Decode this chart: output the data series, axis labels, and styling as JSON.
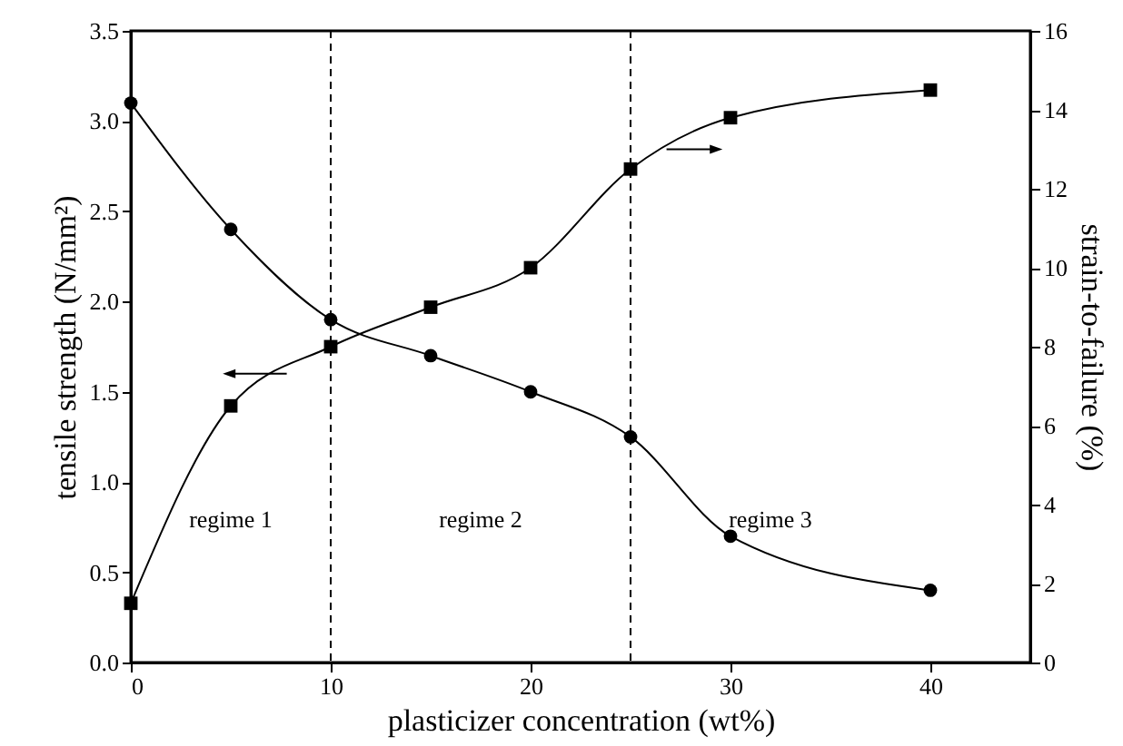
{
  "chart_data": {
    "type": "line",
    "xlabel": "plasticizer concentration (wt%)",
    "ylabel": "tensile strength (N/mm²)",
    "y2label": "strain-to-failure (%)",
    "x": [
      0,
      5,
      10,
      15,
      20,
      25,
      30,
      40
    ],
    "series": [
      {
        "color": "#000000",
        "marker": "circle",
        "values": [
          3.1,
          2.4,
          1.9,
          1.7,
          1.5,
          1.25,
          0.7,
          0.4
        ]
      },
      {
        "color": "#000000",
        "marker": "square",
        "axis": "y2",
        "values": [
          1.5,
          6.5,
          8.0,
          9.0,
          10.0,
          12.5,
          13.8,
          14.5
        ]
      }
    ],
    "xlim": [
      0,
      45
    ],
    "xticks": [
      0,
      10,
      20,
      30,
      40
    ],
    "ylim": [
      0,
      3.5
    ],
    "yticks": [
      {
        "value": 0,
        "label": "0.0"
      },
      {
        "value": 0.5,
        "label": "0.5"
      },
      {
        "value": 1,
        "label": "1.0"
      },
      {
        "value": 1.5,
        "label": "1.5"
      },
      {
        "value": 2,
        "label": "2.0"
      },
      {
        "value": 2.5,
        "label": "2.5"
      },
      {
        "value": 3,
        "label": "3.0"
      },
      {
        "value": 3.5,
        "label": "3.5"
      }
    ],
    "y2lim": [
      0,
      16
    ],
    "y2ticks": [
      0,
      2,
      4,
      6,
      8,
      10,
      12,
      14,
      16
    ],
    "ref_lines": [
      {
        "axis": "x",
        "value": 10,
        "line_style": "dashed"
      },
      {
        "axis": "x",
        "value": 25,
        "line_style": "dashed"
      }
    ],
    "annotations": [
      "regime 1",
      "regime 2",
      "regime 3"
    ],
    "grid": false
  }
}
